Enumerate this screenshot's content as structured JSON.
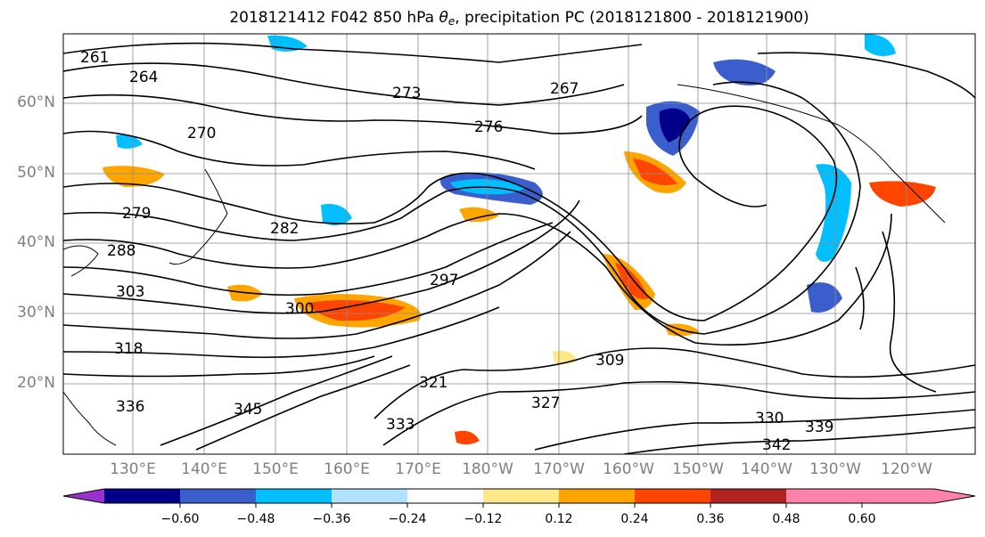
{
  "title": {
    "prefix": "2018121412 F042 850 hPa ",
    "theta": "θ",
    "theta_sub": "e",
    "suffix": ", precipitation PC (2018121800 - 2018121900)"
  },
  "map": {
    "lat_labels": [
      "60°N",
      "50°N",
      "40°N",
      "30°N",
      "20°N"
    ],
    "lon_labels": [
      "130°E",
      "140°E",
      "150°E",
      "160°E",
      "170°E",
      "180°W",
      "170°W",
      "160°W",
      "150°W",
      "140°W",
      "130°W",
      "120°W"
    ],
    "contour_labels": [
      "261",
      "264",
      "267",
      "270",
      "273",
      "276",
      "279",
      "282",
      "288",
      "297",
      "300",
      "303",
      "309",
      "318",
      "321",
      "327",
      "330",
      "333",
      "336",
      "339",
      "342",
      "345"
    ]
  },
  "colorbar": {
    "tick_labels": [
      "−0.60",
      "−0.48",
      "−0.36",
      "−0.24",
      "−0.12",
      "0.12",
      "0.24",
      "0.36",
      "0.48",
      "0.60"
    ],
    "colors": [
      "#9932cc",
      "#00008b",
      "#3a5fcd",
      "#00bfff",
      "#b0e2ff",
      "#ffffff",
      "#ffe88a",
      "#ffa500",
      "#ff4500",
      "#b22222",
      "#ff82ab"
    ]
  }
}
